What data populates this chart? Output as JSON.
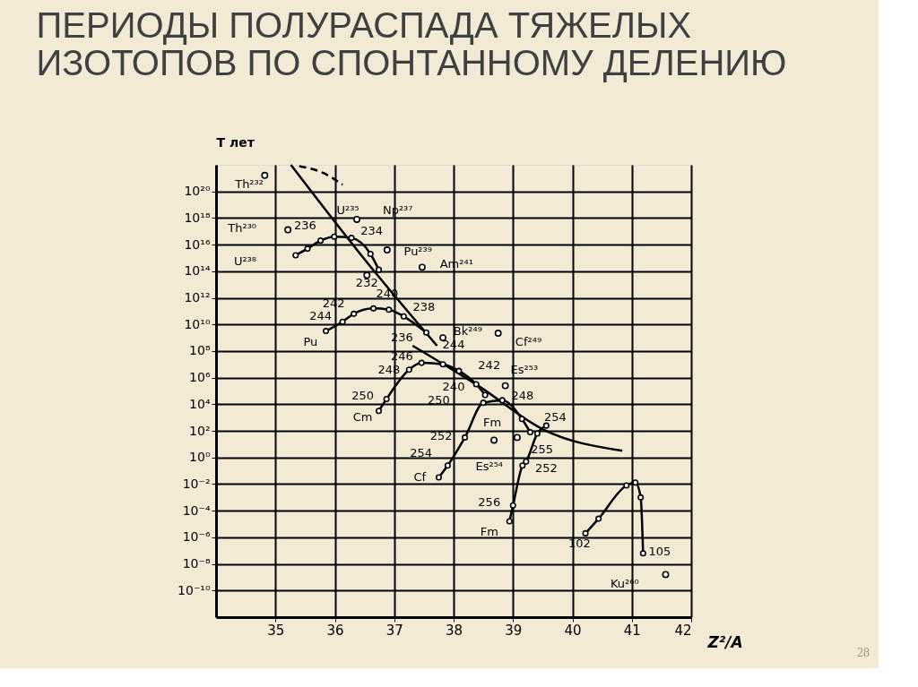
{
  "chart_data": {
    "type": "line",
    "title": [
      "ПЕРИОДЫ ПОЛУРАСПАДА ТЯЖЕЛЫХ",
      "ИЗОТОПОВ ПО СПОНТАННОМУ ДЕЛЕНИЮ"
    ],
    "xlabel": "Z²/A",
    "ylabel": "T лет",
    "xlim": [
      34,
      42
    ],
    "xticks": [
      35,
      36,
      37,
      38,
      39,
      40,
      41,
      42
    ],
    "log": true,
    "ylim": [
      1e-12,
      1e+22
    ],
    "yticks": [
      {
        "value": 1e-10,
        "label": "10⁻¹⁰"
      },
      {
        "value": 1e-08,
        "label": "10⁻⁸"
      },
      {
        "value": 1e-06,
        "label": "10⁻⁶"
      },
      {
        "value": 0.0001,
        "label": "10⁻⁴"
      },
      {
        "value": 0.01,
        "label": "10⁻²"
      },
      {
        "value": 1,
        "label": "10⁰"
      },
      {
        "value": 100,
        "label": "10²"
      },
      {
        "value": 10000.0,
        "label": "10⁴"
      },
      {
        "value": 1000000.0,
        "label": "10⁶"
      },
      {
        "value": 100000000.0,
        "label": "10⁸"
      },
      {
        "value": 10000000000.0,
        "label": "10¹⁰"
      },
      {
        "value": 1000000000000.0,
        "label": "10¹²"
      },
      {
        "value": 100000000000000.0,
        "label": "10¹⁴"
      },
      {
        "value": 1e+16,
        "label": "10¹⁶"
      },
      {
        "value": 1e+18,
        "label": "10¹⁸"
      },
      {
        "value": 1e+20,
        "label": "10²⁰"
      }
    ],
    "grid": true,
    "series": [
      {
        "color": "#000000",
        "marker": "none",
        "line_style": "solid",
        "x": [
          35.26,
          36.5,
          37.72
        ],
        "values": [
          1e+22,
          790000000000000.0,
          250000000.0
        ]
      },
      {
        "color": "#000000",
        "marker": "none",
        "line_style": "solid",
        "x": [
          37.31,
          38.43,
          39.51,
          40.84
        ],
        "values": [
          250000000.0,
          220000.0,
          126,
          3.2
        ]
      },
      {
        "color": "#000000",
        "marker": "none",
        "line_style": "dashed",
        "x": [
          35.4,
          35.8,
          36.13
        ],
        "values": [
          7.9e+21,
          2.5e+21,
          3.2e+20
        ]
      },
      {
        "color": "#000000",
        "marker": "circle",
        "line_style": "solid",
        "x": [
          35.34,
          35.54,
          35.76,
          35.99,
          36.28,
          36.6,
          36.74
        ],
        "values": [
          1600000000000000.0,
          5000000000000000.0,
          2e+16,
          4e+16,
          3.2e+16,
          2000000000000000.0,
          130000000000000.0
        ]
      },
      {
        "color": "#000000",
        "marker": "circle",
        "line_style": "solid",
        "x": [
          35.85,
          36.13,
          36.32,
          36.65,
          36.91,
          37.16,
          37.54
        ],
        "values": [
          3200000000.0,
          16000000000.0,
          63000000000.0,
          160000000000.0,
          130000000000.0,
          40000000000.0,
          2500000000.0
        ]
      },
      {
        "color": "#000000",
        "marker": "circle",
        "line_style": "solid",
        "x": [
          36.74,
          36.87,
          37.25,
          37.46,
          37.82,
          38.09,
          38.38,
          38.53
        ],
        "values": [
          3200,
          25000,
          4000000.0,
          13000000.0,
          10000000.0,
          3200000.0,
          320000.0,
          50000.0
        ]
      },
      {
        "color": "#000000",
        "marker": "circle",
        "line_style": "solid",
        "x": [
          37.75,
          37.9,
          38.19,
          38.5,
          38.82,
          39.15,
          39.29
        ],
        "values": [
          0.032,
          0.25,
          32,
          13000.0,
          20000.0,
          790,
          79
        ]
      },
      {
        "color": "#000000",
        "marker": "circle",
        "line_style": "solid",
        "x": [
          38.94,
          39.0,
          39.16,
          39.22,
          39.41,
          39.56
        ],
        "values": [
          1.6e-05,
          0.00025,
          0.25,
          0.5,
          63,
          250
        ]
      },
      {
        "color": "#000000",
        "marker": "circle",
        "line_style": "solid",
        "x": [
          40.22,
          40.44,
          40.91,
          41.06,
          41.15,
          41.19
        ],
        "values": [
          2e-06,
          2.5e-05,
          0.0079,
          0.013,
          0.001,
          6.3e-08
        ]
      },
      {
        "type": "scatter",
        "color": "#000000",
        "marker": "circle",
        "x": [
          34.82,
          35.21,
          36.37,
          36.88,
          37.47,
          36.54,
          37.82,
          38.75,
          38.87,
          38.68,
          39.07,
          41.57
        ],
        "values": [
          1.6e+21,
          1.3e+17,
          7.9e+17,
          4000000000000000.0,
          200000000000000.0,
          50000000000000.0,
          1000000000.0,
          2200000000.0,
          250000.0,
          20,
          32,
          1.6e-09
        ]
      }
    ],
    "annotations": [
      "Th²³²",
      "Th²³⁰",
      "U²³⁸",
      "U²³⁵",
      "Np²³⁷",
      "Pu²³⁹",
      "Am²⁴¹",
      "236",
      "234",
      "232",
      "242",
      "240",
      "238",
      "244",
      "Pu",
      "236",
      "Bk²⁴⁹",
      "Cf²⁴⁹",
      "246",
      "248",
      "244",
      "242",
      "Es²⁵³",
      "250",
      "Cm",
      "240",
      "250",
      "248",
      "Fm",
      "254",
      "252",
      "255",
      "254",
      "Es²⁵⁴",
      "252",
      "Cf",
      "256",
      "Fm",
      "102",
      "105",
      "Ku²⁶⁰",
      "28"
    ]
  }
}
